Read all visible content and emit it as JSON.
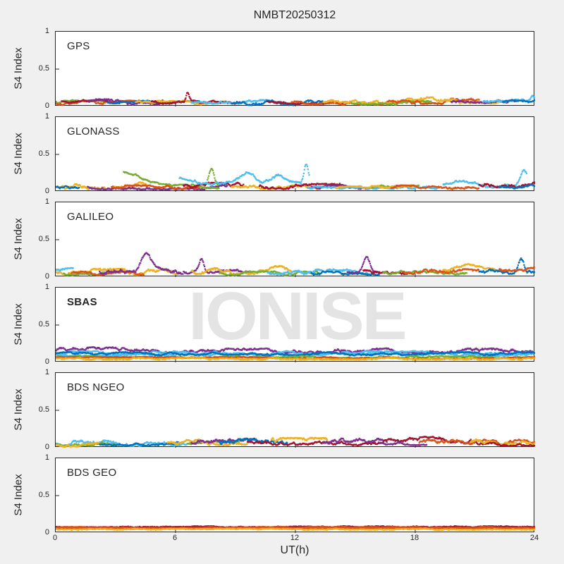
{
  "watermark": "IONISE",
  "colors": {
    "background": "#f0f0f0",
    "panel_bg": "#ffffff",
    "axis": "#262626",
    "text": "#262626",
    "watermark": "#e4e4e4",
    "palette": [
      "#0072BD",
      "#D95319",
      "#EDB120",
      "#7E2F8E",
      "#77AC30",
      "#4DBEEE",
      "#A2142F"
    ]
  },
  "chart_data": {
    "type": "scatter",
    "title": "NMBT20250312",
    "xlabel": "UT(h)",
    "ylabel": "S4 Index",
    "xlim": [
      0,
      24
    ],
    "ylim": [
      0,
      1
    ],
    "xticks": [
      "0",
      "6",
      "12",
      "18",
      "24"
    ],
    "yticks": [
      "1",
      "0.5",
      "0"
    ],
    "grid": false,
    "legend": "none",
    "panels": [
      {
        "label": "GPS",
        "bold": false,
        "typical_range": [
          0.02,
          0.15
        ],
        "traces": [
          {
            "c": 4,
            "x": [
              0,
              2.6
            ],
            "base": 0.06
          },
          {
            "c": 1,
            "x": [
              0,
              4.2
            ],
            "base": 0.05,
            "amp": 0.03
          },
          {
            "c": 6,
            "x": [
              0.3,
              3.2
            ],
            "base": 0.07
          },
          {
            "c": 3,
            "x": [
              1.6,
              5.4
            ],
            "base": 0.06,
            "amp": 0.035
          },
          {
            "c": 0,
            "x": [
              2.6,
              7.2
            ],
            "base": 0.05
          },
          {
            "c": 2,
            "x": [
              4.0,
              8.5
            ],
            "base": 0.05
          },
          {
            "c": 6,
            "x": [
              4.8,
              9.2
            ],
            "base": 0.06,
            "bumps": [
              {
                "x": 6.6,
                "h": 0.12,
                "w": 0.1
              }
            ]
          },
          {
            "c": 5,
            "x": [
              6.8,
              11.3
            ],
            "base": 0.06
          },
          {
            "c": 0,
            "x": [
              8.8,
              13.4
            ],
            "base": 0.05,
            "amp": 0.03
          },
          {
            "c": 6,
            "x": [
              10.6,
              14.6
            ],
            "base": 0.06
          },
          {
            "c": 1,
            "x": [
              11.8,
              16.4
            ],
            "base": 0.05
          },
          {
            "c": 2,
            "x": [
              13.4,
              18.6
            ],
            "base": 0.07,
            "amp": 0.035
          },
          {
            "c": 4,
            "x": [
              14.8,
              18.8
            ],
            "base": 0.05
          },
          {
            "c": 1,
            "x": [
              16.6,
              21.2
            ],
            "base": 0.07,
            "amp": 0.035
          },
          {
            "c": 2,
            "x": [
              18.2,
              22.4
            ],
            "base": 0.08,
            "amp": 0.04
          },
          {
            "c": 3,
            "x": [
              19.8,
              23.0
            ],
            "base": 0.06
          },
          {
            "c": 5,
            "x": [
              21.4,
              24
            ],
            "base": 0.07,
            "bumps": [
              {
                "x": 23.9,
                "h": 0.07,
                "w": 0.15
              }
            ]
          },
          {
            "c": 0,
            "x": [
              22.4,
              24
            ],
            "base": 0.06
          }
        ]
      },
      {
        "label": "GLONASS",
        "bold": false,
        "typical_range": [
          0.02,
          0.4
        ],
        "traces": [
          {
            "c": 2,
            "x": [
              0,
              4.6
            ],
            "base": 0.08,
            "amp": 0.045
          },
          {
            "c": 0,
            "x": [
              0,
              1.2
            ],
            "base": 0.07
          },
          {
            "c": 3,
            "x": [
              1.6,
              8.6
            ],
            "base": 0.06,
            "amp": 0.03
          },
          {
            "c": 4,
            "x": [
              3.4,
              8.2
            ],
            "base": 0.07,
            "bumps": [
              {
                "x": 3.5,
                "h": 0.2,
                "w": 1.1
              }
            ]
          },
          {
            "c": 1,
            "x": [
              2.8,
              7.2
            ],
            "base": 0.06
          },
          {
            "c": 6,
            "x": [
              6.4,
              9.4
            ],
            "base": 0.08,
            "amp": 0.04
          },
          {
            "c": 4,
            "x": [
              7.6,
              8.15
            ],
            "base": 0.1,
            "bumps": [
              {
                "x": 7.8,
                "h": 0.2,
                "w": 0.18
              }
            ]
          },
          {
            "c": 5,
            "x": [
              6.2,
              12.3
            ],
            "base": 0.1,
            "amp": 0.03,
            "bumps": [
              {
                "x": 6.4,
                "h": 0.1,
                "w": 0.5
              },
              {
                "x": 9.6,
                "h": 0.13,
                "w": 0.55
              },
              {
                "x": 11.1,
                "h": 0.1,
                "w": 0.45
              }
            ]
          },
          {
            "c": 5,
            "x": [
              12.3,
              12.7
            ],
            "base": 0.12,
            "bumps": [
              {
                "x": 12.55,
                "h": 0.26,
                "w": 0.16
              }
            ]
          },
          {
            "c": 2,
            "x": [
              8.8,
              13.2
            ],
            "base": 0.06
          },
          {
            "c": 6,
            "x": [
              10.2,
              14.4
            ],
            "base": 0.07,
            "amp": 0.035
          },
          {
            "c": 3,
            "x": [
              12.8,
              17.2
            ],
            "base": 0.06
          },
          {
            "c": 5,
            "x": [
              12.6,
              19.2
            ],
            "base": 0.07,
            "amp": 0.03
          },
          {
            "c": 4,
            "x": [
              15.8,
              18.2
            ],
            "base": 0.06
          },
          {
            "c": 2,
            "x": [
              14,
              18
            ],
            "base": 0.05
          },
          {
            "c": 1,
            "x": [
              16.8,
              21.2
            ],
            "base": 0.06
          },
          {
            "c": 5,
            "x": [
              19.4,
              23.6
            ],
            "base": 0.08,
            "bumps": [
              {
                "x": 20.3,
                "h": 0.06,
                "w": 0.8
              },
              {
                "x": 23.45,
                "h": 0.22,
                "w": 0.25
              }
            ]
          },
          {
            "c": 6,
            "x": [
              21.2,
              24
            ],
            "base": 0.1,
            "amp": 0.04
          },
          {
            "c": 0,
            "x": [
              22.2,
              24
            ],
            "base": 0.07
          }
        ]
      },
      {
        "label": "GALILEO",
        "bold": false,
        "typical_range": [
          0.02,
          0.35
        ],
        "traces": [
          {
            "c": 2,
            "x": [
              0,
              6.2
            ],
            "base": 0.07,
            "amp": 0.04
          },
          {
            "c": 5,
            "x": [
              0,
              0.9
            ],
            "base": 0.1
          },
          {
            "c": 4,
            "x": [
              0.4,
              3.4
            ],
            "base": 0.05
          },
          {
            "c": 1,
            "x": [
              0.8,
              4.4
            ],
            "base": 0.05
          },
          {
            "c": 3,
            "x": [
              2.2,
              6.4
            ],
            "base": 0.08,
            "amp": 0.04,
            "bumps": [
              {
                "x": 4.55,
                "h": 0.2,
                "w": 0.35
              }
            ]
          },
          {
            "c": 3,
            "x": [
              6.4,
              9.8
            ],
            "base": 0.07,
            "bumps": [
              {
                "x": 7.3,
                "h": 0.18,
                "w": 0.18
              }
            ]
          },
          {
            "c": 2,
            "x": [
              6.8,
              11.8
            ],
            "base": 0.08,
            "amp": 0.04,
            "bumps": [
              {
                "x": 11.0,
                "h": 0.08,
                "w": 0.5
              }
            ]
          },
          {
            "c": 4,
            "x": [
              8.2,
              13.2
            ],
            "base": 0.05
          },
          {
            "c": 5,
            "x": [
              10.6,
              15.6
            ],
            "base": 0.07,
            "amp": 0.035
          },
          {
            "c": 0,
            "x": [
              12.8,
              16.2
            ],
            "base": 0.05
          },
          {
            "c": 3,
            "x": [
              14.6,
              16.1
            ],
            "base": 0.07,
            "bumps": [
              {
                "x": 15.55,
                "h": 0.18,
                "w": 0.22
              }
            ]
          },
          {
            "c": 6,
            "x": [
              15.4,
              17.6
            ],
            "base": 0.08,
            "amp": 0.04
          },
          {
            "c": 4,
            "x": [
              16.4,
              20.6
            ],
            "base": 0.06
          },
          {
            "c": 1,
            "x": [
              17.4,
              21.2
            ],
            "base": 0.07,
            "amp": 0.035
          },
          {
            "c": 2,
            "x": [
              19.4,
              22.6
            ],
            "base": 0.09,
            "bumps": [
              {
                "x": 20.7,
                "h": 0.09,
                "w": 0.55
              }
            ]
          },
          {
            "c": 0,
            "x": [
              21.2,
              24
            ],
            "base": 0.08,
            "amp": 0.04,
            "bumps": [
              {
                "x": 23.3,
                "h": 0.2,
                "w": 0.2
              }
            ]
          },
          {
            "c": 1,
            "x": [
              22.2,
              24
            ],
            "base": 0.09,
            "amp": 0.04
          }
        ]
      },
      {
        "label": "SBAS",
        "bold": true,
        "typical_range": [
          0.04,
          0.2
        ],
        "traces": [
          {
            "c": 3,
            "x": [
              0,
              24
            ],
            "base": 0.155,
            "amp": 0.03,
            "bumps": [
              {
                "x": 1.5,
                "h": 0.02,
                "w": 2.5
              }
            ]
          },
          {
            "c": 5,
            "x": [
              0,
              24
            ],
            "base": 0.125,
            "amp": 0.025
          },
          {
            "c": 5,
            "x": [
              0,
              24
            ],
            "base": 0.105,
            "amp": 0.02
          },
          {
            "c": 0,
            "x": [
              0,
              24
            ],
            "base": 0.115,
            "amp": 0.02
          },
          {
            "c": 4,
            "x": [
              0,
              24
            ],
            "base": 0.07,
            "amp": 0.012
          },
          {
            "c": 1,
            "x": [
              0,
              24
            ],
            "base": 0.06,
            "amp": 0.012
          },
          {
            "c": 2,
            "x": [
              0,
              24
            ],
            "base": 0.05,
            "amp": 0.012
          }
        ]
      },
      {
        "label": "BDS NGEO",
        "bold": false,
        "typical_range": [
          0.02,
          0.15
        ],
        "traces": [
          {
            "c": 5,
            "x": [
              0,
              6.6
            ],
            "base": 0.06,
            "amp": 0.035
          },
          {
            "c": 4,
            "x": [
              0,
              3.2
            ],
            "base": 0.05
          },
          {
            "c": 2,
            "x": [
              0,
              2.2
            ],
            "base": 0.04
          },
          {
            "c": 0,
            "x": [
              2.2,
              6.2
            ],
            "base": 0.05
          },
          {
            "c": 4,
            "x": [
              6.6,
              9.2
            ],
            "base": 0.06
          },
          {
            "c": 2,
            "x": [
              5.6,
              9.6
            ],
            "base": 0.07,
            "amp": 0.035
          },
          {
            "c": 3,
            "x": [
              6.8,
              10.6
            ],
            "base": 0.08,
            "amp": 0.04
          },
          {
            "c": 0,
            "x": [
              8.2,
              11.6
            ],
            "base": 0.08,
            "amp": 0.04
          },
          {
            "c": 6,
            "x": [
              9.6,
              16.4
            ],
            "base": 0.07,
            "amp": 0.035
          },
          {
            "c": 2,
            "x": [
              10.8,
              13.6
            ],
            "base": 0.09,
            "amp": 0.04
          },
          {
            "c": 3,
            "x": [
              13.4,
              16.6
            ],
            "base": 0.08,
            "amp": 0.04
          },
          {
            "c": 6,
            "x": [
              16.4,
              21.6
            ],
            "base": 0.08,
            "amp": 0.035,
            "bumps": [
              {
                "x": 18.6,
                "h": 0.03,
                "w": 1.2
              }
            ]
          },
          {
            "c": 3,
            "x": [
              16.2,
              18.6
            ],
            "base": 0.06
          },
          {
            "c": 1,
            "x": [
              18.2,
              24
            ],
            "base": 0.07,
            "amp": 0.035
          },
          {
            "c": 2,
            "x": [
              20.8,
              24
            ],
            "base": 0.08,
            "amp": 0.04
          },
          {
            "c": 6,
            "x": [
              21.6,
              24
            ],
            "base": 0.05
          }
        ]
      },
      {
        "label": "BDS GEO",
        "bold": false,
        "typical_range": [
          0.04,
          0.09
        ],
        "traces": [
          {
            "c": 6,
            "x": [
              0,
              24
            ],
            "base": 0.082,
            "amp": 0.006
          },
          {
            "c": 1,
            "x": [
              0,
              24
            ],
            "base": 0.072,
            "amp": 0.008
          },
          {
            "c": 1,
            "x": [
              0,
              24
            ],
            "base": 0.062,
            "amp": 0.007
          },
          {
            "c": 2,
            "x": [
              0,
              24
            ],
            "base": 0.05,
            "amp": 0.007
          }
        ]
      }
    ]
  }
}
